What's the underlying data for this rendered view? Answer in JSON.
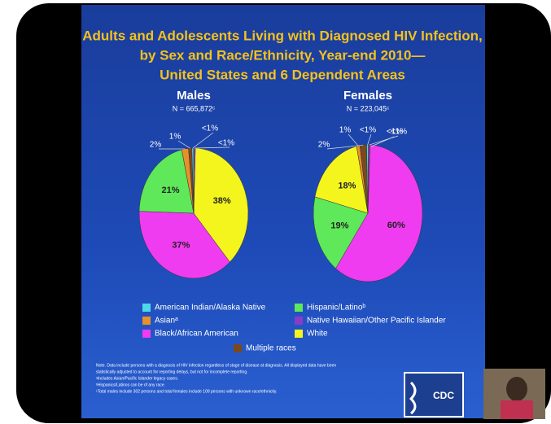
{
  "slide": {
    "title_lines": [
      "Adults and Adolescents Living with Diagnosed HIV Infection,",
      "by Sex and Race/Ethnicity, Year-end 2010—",
      "United States and 6 Dependent Areas"
    ],
    "footnotes": [
      "Note. Data include persons with a diagnosis of HIV infection regardless of stage of disease at diagnosis. All displayed data have been",
      "statistically adjusted to account for reporting delays, but not for incomplete reporting.",
      "ᵃIncludes Asian/Pacific Islander legacy cases.",
      "ᵇHispanics/Latinos can be of any race.",
      "ᶜTotal males include 302 persons and total females include 109 persons with unknown race/ethnicity."
    ],
    "logo": "CDC"
  },
  "chart_data": [
    {
      "type": "pie",
      "title": "Males",
      "subtitle": "N = 665,872ᶜ",
      "categories": [
        "American Indian/Alaska Native",
        "Asianᵃ",
        "Black/African American",
        "Hispanic/Latinoᵇ",
        "Native Hawaiian/Other Pacific Islander",
        "White",
        "Multiple races"
      ],
      "colors": [
        "#4fd8e8",
        "#e8902a",
        "#f03cf0",
        "#5ee85a",
        "#8a3cc8",
        "#f5f51e",
        "#7a4a1e"
      ],
      "values": [
        0.5,
        2,
        37,
        21,
        0.5,
        38,
        1
      ],
      "value_labels": [
        "<1%",
        "2%",
        "37%",
        "21%",
        "<1%",
        "38%",
        "1%"
      ]
    },
    {
      "type": "pie",
      "title": "Females",
      "subtitle": "N = 223,045ᶜ",
      "categories": [
        "American Indian/Alaska Native",
        "Asianᵃ",
        "Black/African American",
        "Hispanic/Latinoᵇ",
        "Native Hawaiian/Other Pacific Islander",
        "White",
        "Multiple races"
      ],
      "colors": [
        "#4fd8e8",
        "#e8902a",
        "#f03cf0",
        "#5ee85a",
        "#8a3cc8",
        "#f5f51e",
        "#7a4a1e"
      ],
      "values": [
        0.5,
        1,
        60,
        19,
        0.5,
        18,
        2
      ],
      "value_labels": [
        "<1%",
        "1%",
        "60%",
        "19%",
        "<1%",
        "18%",
        "2%"
      ],
      "annotations": [
        "<1%"
      ]
    }
  ]
}
